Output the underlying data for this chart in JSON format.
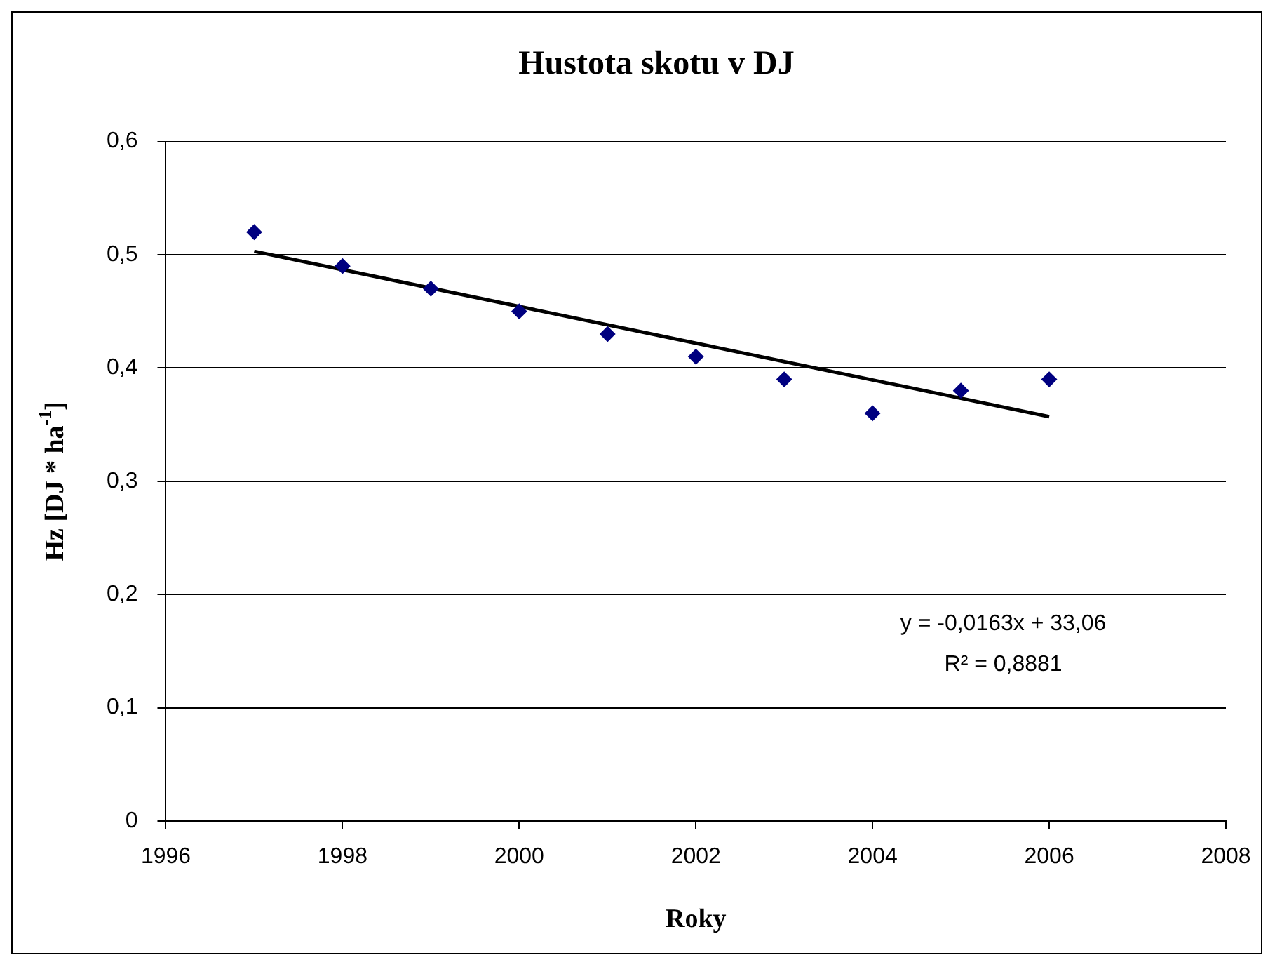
{
  "chart_data": {
    "type": "scatter",
    "title": "Hustota skotu v DJ",
    "xlabel": "Roky",
    "ylabel": "Hz [DJ * ha$^{-1}$]",
    "x": [
      1997,
      1998,
      1999,
      2000,
      2001,
      2002,
      2003,
      2004,
      2005,
      2006
    ],
    "series": [
      {
        "type": "scatter",
        "color": "#000080",
        "values": [
          0.52,
          0.49,
          0.47,
          0.45,
          0.43,
          0.41,
          0.39,
          0.36,
          0.38,
          0.39
        ]
      },
      {
        "type": "line",
        "marker": "none",
        "color": "#000000",
        "x": [
          1997,
          2006
        ],
        "values": [
          0.503,
          0.357
        ]
      }
    ],
    "xlim": [
      1996,
      2008
    ],
    "xticks": [
      1996,
      1998,
      2000,
      2002,
      2004,
      2006,
      2008
    ],
    "ylim": [
      0,
      0.6
    ],
    "yticks": [
      0,
      {
        "value": 0.1,
        "label": "0,1"
      },
      {
        "value": 0.2,
        "label": "0,2"
      },
      {
        "value": 0.3,
        "label": "0,3"
      },
      {
        "value": 0.4,
        "label": "0,4"
      },
      {
        "value": 0.5,
        "label": "0,5"
      },
      {
        "value": 0.6,
        "label": "0,6"
      }
    ],
    "annotations": [
      "y = -0,0163x + 33,06",
      "R² = 0,8881"
    ],
    "grid": "y",
    "legend": false,
    "marker": "diamond",
    "line_style": "solid"
  }
}
